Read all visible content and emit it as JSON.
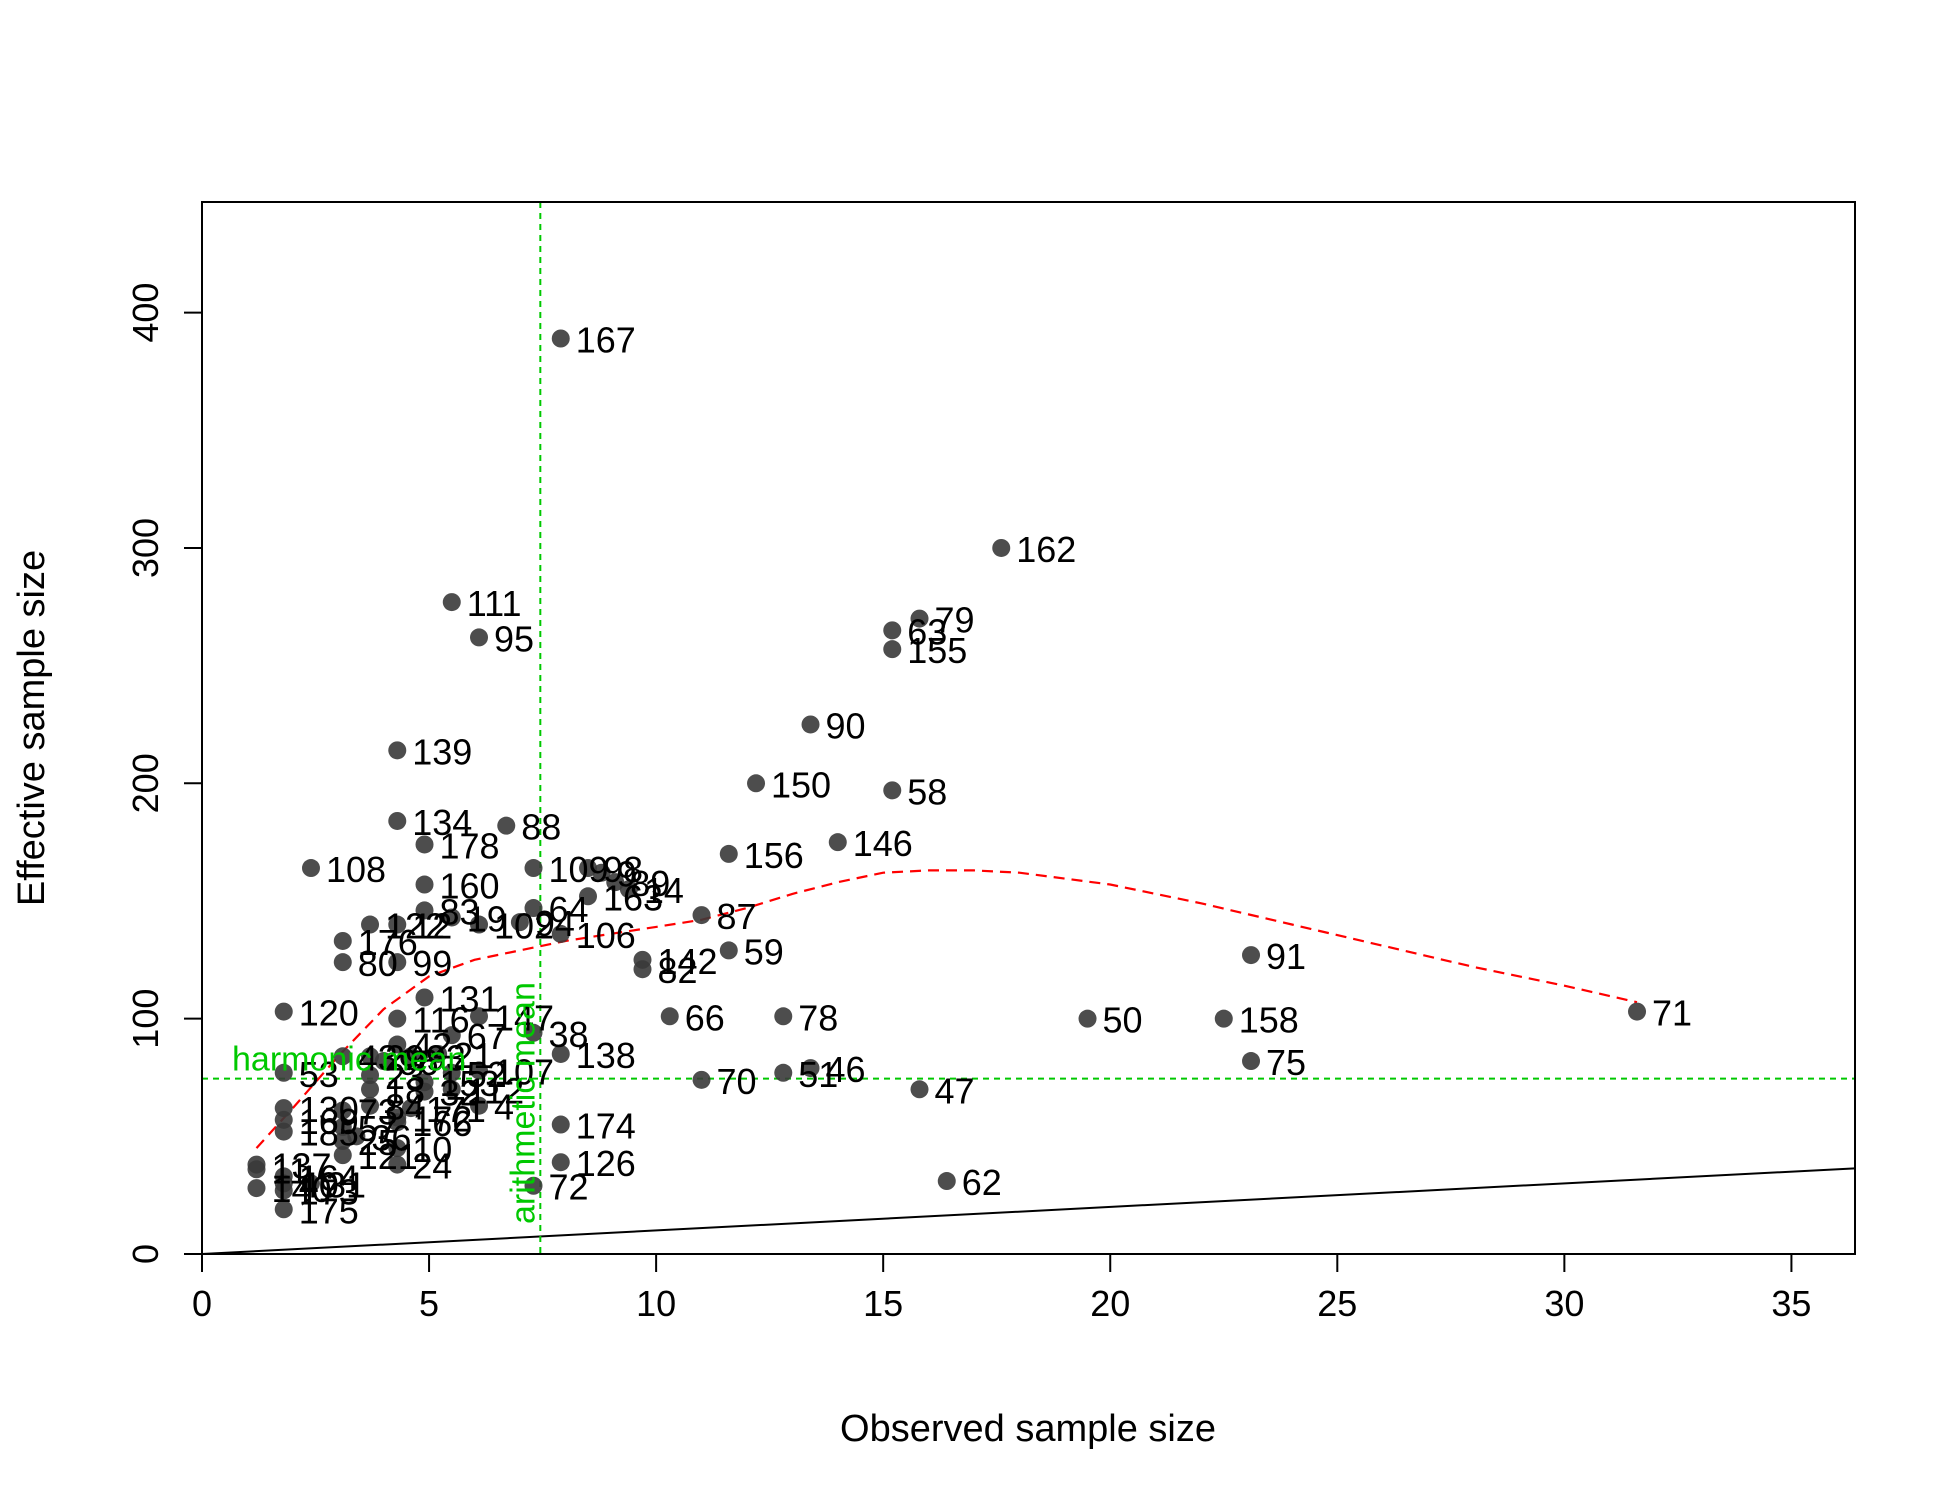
{
  "chart_data": {
    "type": "scatter",
    "title": "",
    "xlabel": "Observed sample size",
    "ylabel": "Effective sample size",
    "xlim": [
      0,
      36.4
    ],
    "ylim": [
      0,
      447
    ],
    "xticks": [
      0,
      5,
      10,
      15,
      20,
      25,
      30,
      35
    ],
    "yticks": [
      0,
      100,
      200,
      300,
      400
    ],
    "grid": false,
    "legend": "none",
    "colors": {
      "points": "#3a3a3a",
      "labels": "#000000",
      "reference_lines": "#00c800",
      "trend": "#ff0000",
      "identity_line": "#000000"
    },
    "points": [
      {
        "label": "167",
        "x": 7.9,
        "y": 389
      },
      {
        "label": "162",
        "x": 17.6,
        "y": 300
      },
      {
        "label": "111",
        "x": 5.5,
        "y": 277
      },
      {
        "label": "95",
        "x": 6.1,
        "y": 262
      },
      {
        "label": "79",
        "x": 15.8,
        "y": 270
      },
      {
        "label": "63",
        "x": 15.2,
        "y": 265
      },
      {
        "label": "155",
        "x": 15.2,
        "y": 257
      },
      {
        "label": "90",
        "x": 13.4,
        "y": 225
      },
      {
        "label": "139",
        "x": 4.3,
        "y": 214
      },
      {
        "label": "150",
        "x": 12.2,
        "y": 200
      },
      {
        "label": "58",
        "x": 15.2,
        "y": 197
      },
      {
        "label": "134",
        "x": 4.3,
        "y": 184
      },
      {
        "label": "88",
        "x": 6.7,
        "y": 182
      },
      {
        "label": "178",
        "x": 4.9,
        "y": 174
      },
      {
        "label": "146",
        "x": 14.0,
        "y": 175
      },
      {
        "label": "156",
        "x": 11.6,
        "y": 170
      },
      {
        "label": "108",
        "x": 2.4,
        "y": 164
      },
      {
        "label": "109",
        "x": 7.3,
        "y": 164
      },
      {
        "label": "98",
        "x": 8.5,
        "y": 164
      },
      {
        "label": "9",
        "x": 8.8,
        "y": 162
      },
      {
        "label": "89",
        "x": 9.1,
        "y": 158
      },
      {
        "label": "14",
        "x": 9.4,
        "y": 155
      },
      {
        "label": "163",
        "x": 8.5,
        "y": 152
      },
      {
        "label": "160",
        "x": 4.9,
        "y": 157
      },
      {
        "label": "83",
        "x": 4.9,
        "y": 146
      },
      {
        "label": "64",
        "x": 7.3,
        "y": 147
      },
      {
        "label": "87",
        "x": 11.0,
        "y": 144
      },
      {
        "label": "19",
        "x": 5.5,
        "y": 143
      },
      {
        "label": "102",
        "x": 6.1,
        "y": 140
      },
      {
        "label": "94",
        "x": 7.0,
        "y": 141
      },
      {
        "label": "122",
        "x": 3.7,
        "y": 140
      },
      {
        "label": "12",
        "x": 4.3,
        "y": 140
      },
      {
        "label": "106",
        "x": 7.9,
        "y": 136
      },
      {
        "label": "176",
        "x": 3.1,
        "y": 133
      },
      {
        "label": "59",
        "x": 11.6,
        "y": 129
      },
      {
        "label": "91",
        "x": 23.1,
        "y": 127
      },
      {
        "label": "80",
        "x": 3.1,
        "y": 124
      },
      {
        "label": "99",
        "x": 4.3,
        "y": 124
      },
      {
        "label": "142",
        "x": 9.7,
        "y": 125
      },
      {
        "label": "82",
        "x": 9.7,
        "y": 121
      },
      {
        "label": "120",
        "x": 1.8,
        "y": 103
      },
      {
        "label": "131",
        "x": 4.9,
        "y": 109
      },
      {
        "label": "71",
        "x": 31.6,
        "y": 103
      },
      {
        "label": "66",
        "x": 10.3,
        "y": 101
      },
      {
        "label": "78",
        "x": 12.8,
        "y": 101
      },
      {
        "label": "50",
        "x": 19.5,
        "y": 100
      },
      {
        "label": "158",
        "x": 22.5,
        "y": 100
      },
      {
        "label": "116",
        "x": 4.3,
        "y": 100
      },
      {
        "label": "147",
        "x": 6.1,
        "y": 101
      },
      {
        "label": "67",
        "x": 5.5,
        "y": 93
      },
      {
        "label": "38",
        "x": 7.3,
        "y": 94
      },
      {
        "label": "42",
        "x": 4.3,
        "y": 89
      },
      {
        "label": "138",
        "x": 7.9,
        "y": 85
      },
      {
        "label": "75",
        "x": 23.1,
        "y": 82
      },
      {
        "label": "21",
        "x": 5.2,
        "y": 85
      },
      {
        "label": "29",
        "x": 3.7,
        "y": 84
      },
      {
        "label": "43",
        "x": 3.1,
        "y": 84
      },
      {
        "label": "96",
        "x": 4.0,
        "y": 82
      },
      {
        "label": "93",
        "x": 4.6,
        "y": 84
      },
      {
        "label": "46",
        "x": 13.4,
        "y": 79
      },
      {
        "label": "51",
        "x": 12.8,
        "y": 77
      },
      {
        "label": "53",
        "x": 1.8,
        "y": 77
      },
      {
        "label": "107",
        "x": 6.1,
        "y": 78
      },
      {
        "label": "52",
        "x": 5.5,
        "y": 77
      },
      {
        "label": "70",
        "x": 11.0,
        "y": 74
      },
      {
        "label": "23",
        "x": 3.7,
        "y": 76
      },
      {
        "label": "153",
        "x": 4.9,
        "y": 73
      },
      {
        "label": "47",
        "x": 15.8,
        "y": 70
      },
      {
        "label": "112",
        "x": 5.5,
        "y": 70
      },
      {
        "label": "32",
        "x": 4.9,
        "y": 69
      },
      {
        "label": "18",
        "x": 3.7,
        "y": 70
      },
      {
        "label": "130",
        "x": 1.8,
        "y": 62
      },
      {
        "label": "73",
        "x": 3.1,
        "y": 61
      },
      {
        "label": "84",
        "x": 3.7,
        "y": 63
      },
      {
        "label": "171",
        "x": 4.6,
        "y": 62
      },
      {
        "label": "4",
        "x": 6.1,
        "y": 63
      },
      {
        "label": "172",
        "x": 4.3,
        "y": 58
      },
      {
        "label": "169",
        "x": 1.8,
        "y": 57
      },
      {
        "label": "166",
        "x": 4.3,
        "y": 56
      },
      {
        "label": "174",
        "x": 7.9,
        "y": 55
      },
      {
        "label": "57",
        "x": 3.1,
        "y": 54
      },
      {
        "label": "185",
        "x": 1.8,
        "y": 52
      },
      {
        "label": "36",
        "x": 3.4,
        "y": 50
      },
      {
        "label": "25",
        "x": 3.1,
        "y": 48
      },
      {
        "label": "10",
        "x": 4.3,
        "y": 45
      },
      {
        "label": "121",
        "x": 3.1,
        "y": 42
      },
      {
        "label": "126",
        "x": 7.9,
        "y": 39
      },
      {
        "label": "24",
        "x": 4.3,
        "y": 38
      },
      {
        "label": "137",
        "x": 1.2,
        "y": 38
      },
      {
        "label": "11",
        "x": 1.2,
        "y": 36
      },
      {
        "label": "164",
        "x": 1.8,
        "y": 33
      },
      {
        "label": "62",
        "x": 16.4,
        "y": 31
      },
      {
        "label": "40",
        "x": 1.8,
        "y": 30
      },
      {
        "label": "31",
        "x": 2.4,
        "y": 30
      },
      {
        "label": "72",
        "x": 7.3,
        "y": 29
      },
      {
        "label": "140",
        "x": 1.2,
        "y": 28
      },
      {
        "label": "173",
        "x": 1.8,
        "y": 27
      },
      {
        "label": "175",
        "x": 1.8,
        "y": 19
      }
    ],
    "reference_lines": [
      {
        "orientation": "horizontal",
        "value": 74.5,
        "label": "harmonic mean"
      },
      {
        "orientation": "vertical",
        "value": 7.45,
        "label": "arithmetic mean"
      }
    ],
    "trend": {
      "x": [
        1.2,
        2,
        3,
        4,
        5,
        6,
        7,
        8,
        9,
        10,
        11,
        12,
        13,
        14,
        15,
        16,
        17,
        18,
        20,
        22,
        24,
        26,
        28,
        30,
        31.6
      ],
      "y": [
        45,
        62,
        84,
        104,
        118,
        125,
        129,
        133,
        136,
        139,
        142,
        147,
        153,
        158,
        162,
        163,
        163,
        162,
        157,
        149,
        140,
        131,
        122,
        114,
        107
      ]
    },
    "identity_line": {
      "x": [
        0,
        36.4
      ],
      "y": [
        0,
        36.4
      ]
    }
  }
}
